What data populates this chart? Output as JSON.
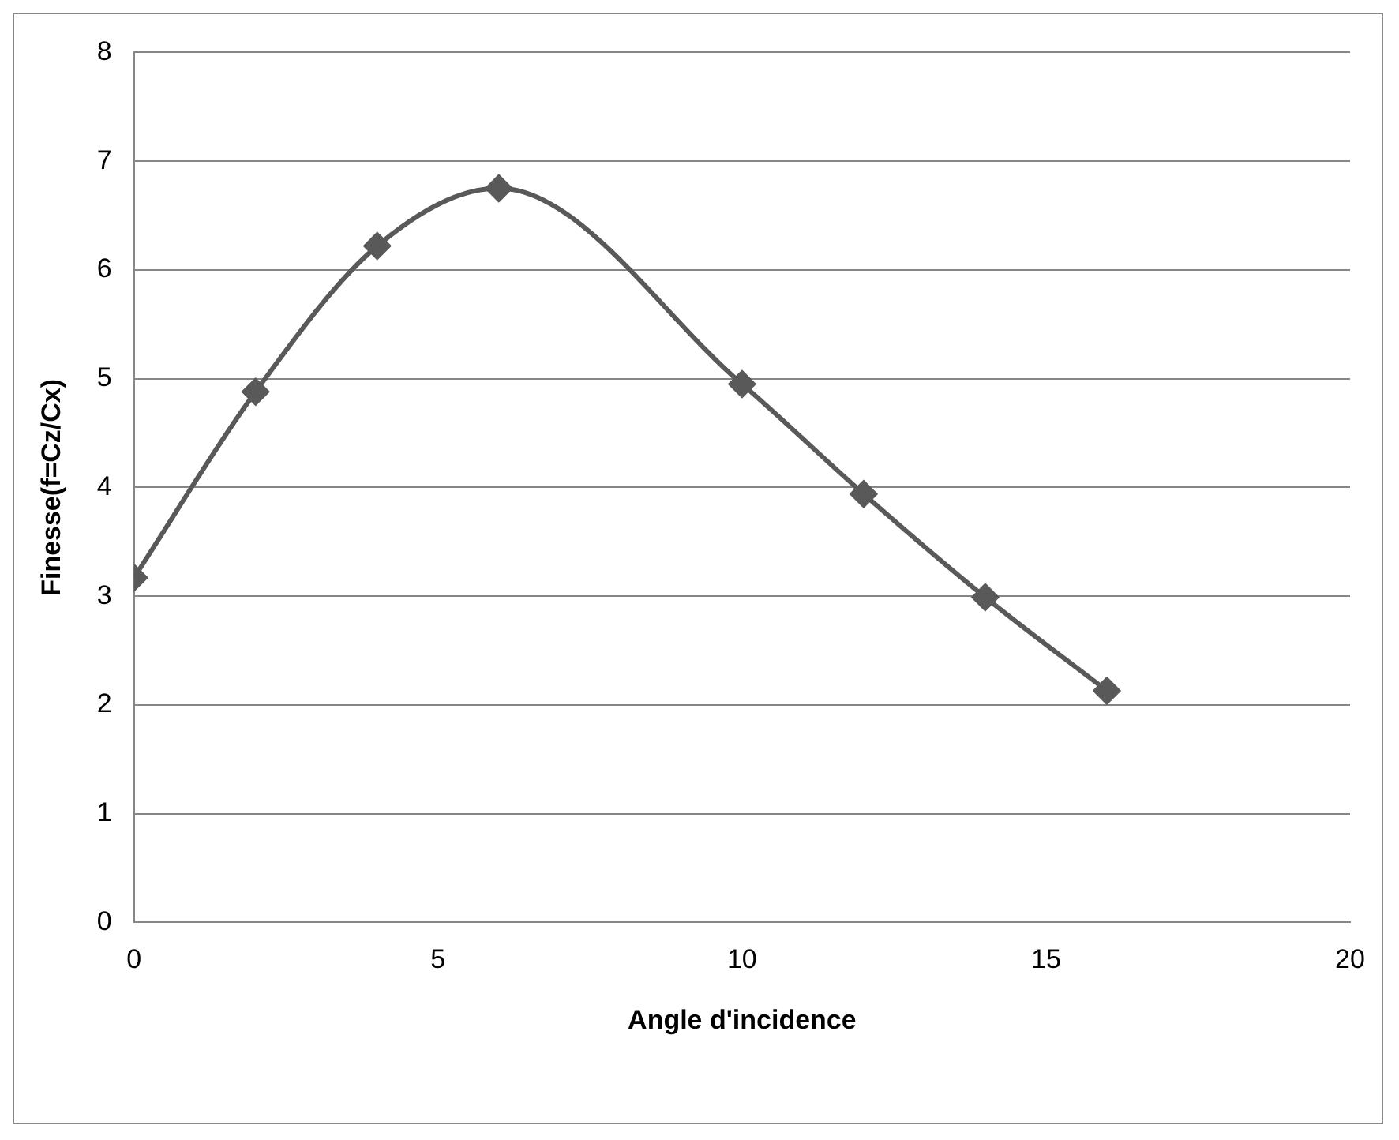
{
  "chart_data": {
    "type": "line",
    "xlabel": "Angle d'incidence",
    "ylabel": "Finesse(f=Cz/Cx)",
    "x": [
      0,
      2,
      4,
      6,
      10,
      12,
      14,
      16
    ],
    "series": [
      {
        "color": "#595959",
        "values": [
          3.17,
          4.88,
          6.22,
          6.75,
          4.95,
          3.94,
          2.99,
          2.13
        ]
      }
    ],
    "xlim": [
      0,
      20
    ],
    "xticks": [
      0,
      5,
      10,
      15,
      20
    ],
    "ylim": [
      0,
      8
    ],
    "yticks": [
      0,
      1,
      2,
      3,
      4,
      5,
      6,
      7,
      8
    ],
    "grid": "y",
    "legend": false,
    "marker": "diamond",
    "line_style": "solid"
  }
}
